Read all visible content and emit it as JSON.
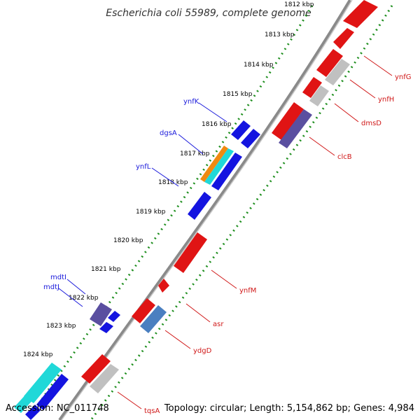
{
  "title": "Escherichia coli 55989, complete genome",
  "footer": {
    "accession": "Accession: NC_011748",
    "summary": "Topology: circular; Length: 5,154,862 bp; Genes: 4,984"
  },
  "ticks": [
    "1812 kbp",
    "1813 kbp",
    "1814 kbp",
    "1815 kbp",
    "1816 kbp",
    "1817 kbp",
    "1818 kbp",
    "1819 kbp",
    "1820 kbp",
    "1821 kbp",
    "1822 kbp",
    "1823 kbp",
    "1824 kbp"
  ],
  "gene_labels": {
    "ynfK": "ynfK",
    "dgsA": "dgsA",
    "ynfL": "ynfL",
    "mdtI": "mdtI",
    "mdtJ": "mdtJ",
    "ynfG": "ynfG",
    "ynfH": "ynfH",
    "dmsD": "dmsD",
    "clcB": "clcB",
    "ynfM": "ynfM",
    "asr": "asr",
    "ydgD": "ydgD",
    "tqsA": "tqsA"
  },
  "colors": {
    "backbone": "#808080",
    "tick_dots": "#1f8f1f",
    "forward_genes": "#1414e0",
    "reverse_genes": "#e01414",
    "pseudo_grey": "#c0c0c0",
    "rna_purple": "#5a4fa0",
    "orange": "#f08a10",
    "cyan": "#20d8d8",
    "steelblue": "#4a7fc0"
  }
}
